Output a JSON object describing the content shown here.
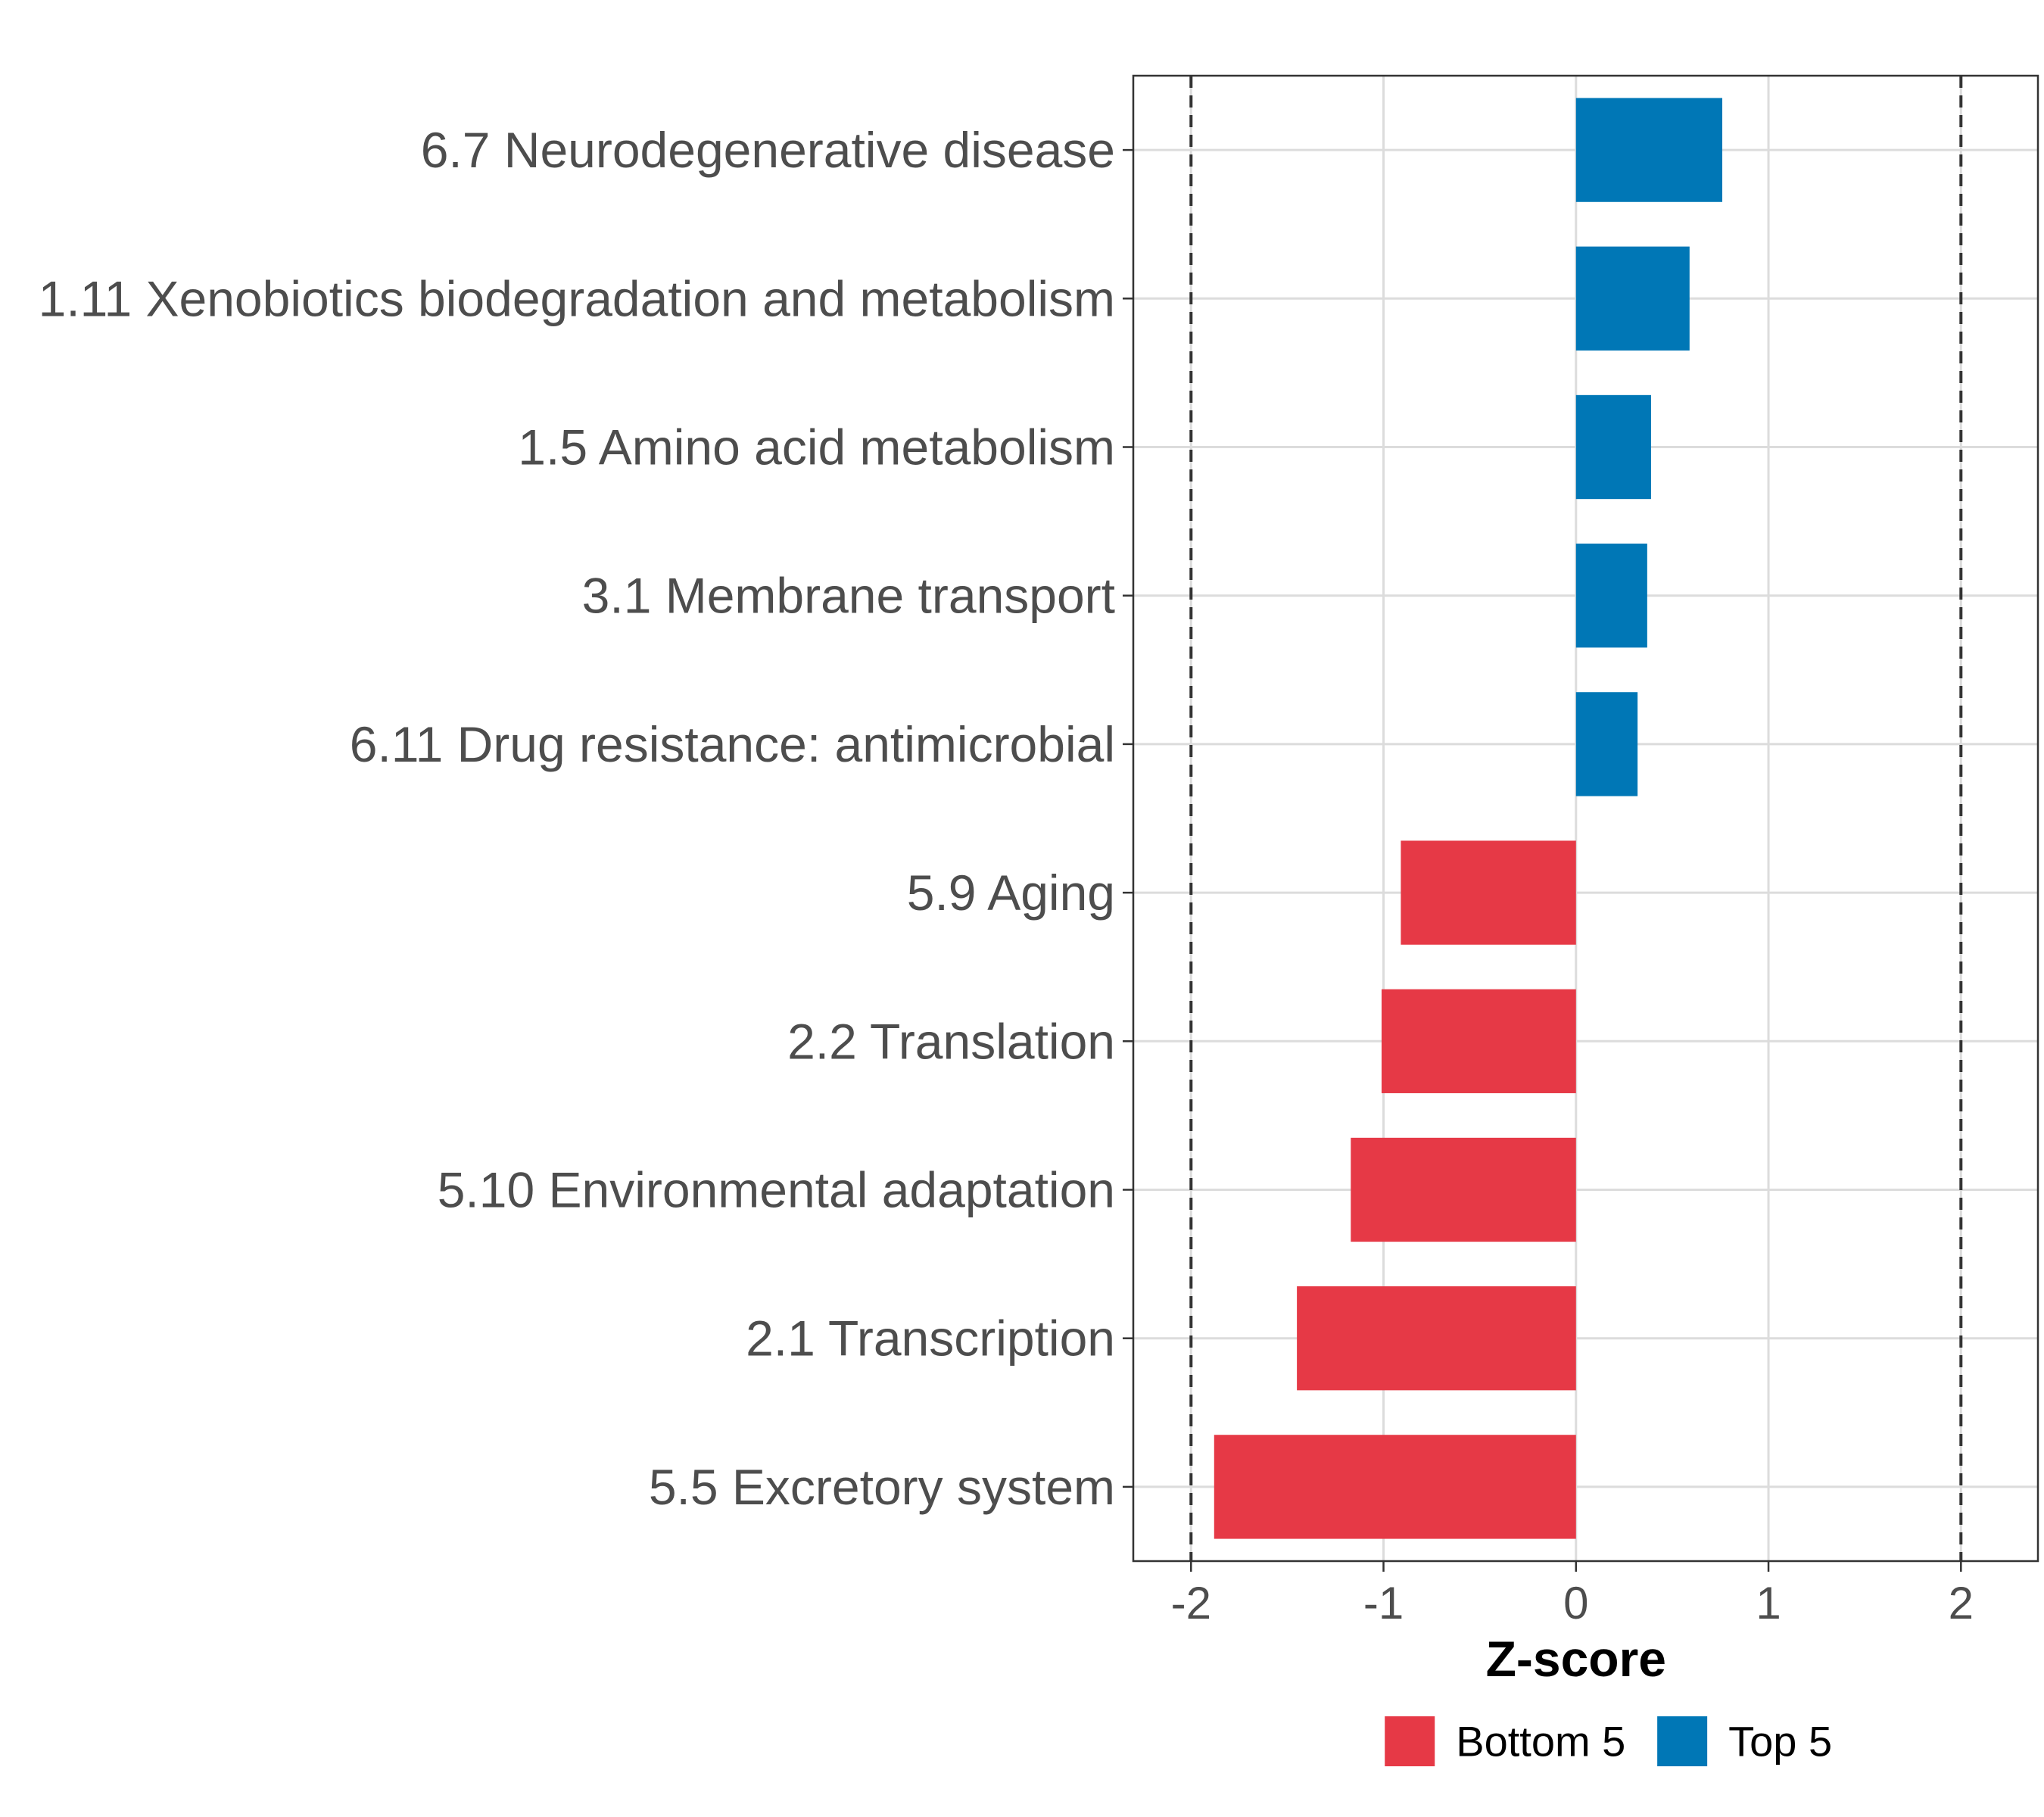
{
  "chart_data": {
    "type": "bar",
    "orientation": "horizontal",
    "title": "",
    "xlabel": "Z-score",
    "ylabel": "",
    "xlim": [
      -2.3,
      2.4
    ],
    "xticks": [
      -2,
      -1,
      0,
      1,
      2
    ],
    "xtick_labels": [
      "-2",
      "-1",
      "0",
      "1",
      "2"
    ],
    "reference_lines": [
      -2,
      2
    ],
    "grid": true,
    "legend_position": "bottom",
    "categories": [
      "6.7 Neurodegenerative disease",
      "1.11 Xenobiotics biodegradation and metabolism",
      "1.5 Amino acid metabolism",
      "3.1 Membrane transport",
      "6.11 Drug resistance: antimicrobial",
      "5.9 Aging",
      "2.2 Translation",
      "5.10 Environmental adaptation",
      "2.1 Transcription",
      "5.5 Excretory system"
    ],
    "values": [
      0.76,
      0.59,
      0.39,
      0.37,
      0.32,
      -0.91,
      -1.01,
      -1.17,
      -1.45,
      -1.88
    ],
    "groups": [
      "Top 5",
      "Top 5",
      "Top 5",
      "Top 5",
      "Top 5",
      "Bottom 5",
      "Bottom 5",
      "Bottom 5",
      "Bottom 5",
      "Bottom 5"
    ],
    "legend": [
      {
        "name": "Bottom 5",
        "color": "#e63946"
      },
      {
        "name": "Top 5",
        "color": "#0077b6"
      }
    ]
  }
}
